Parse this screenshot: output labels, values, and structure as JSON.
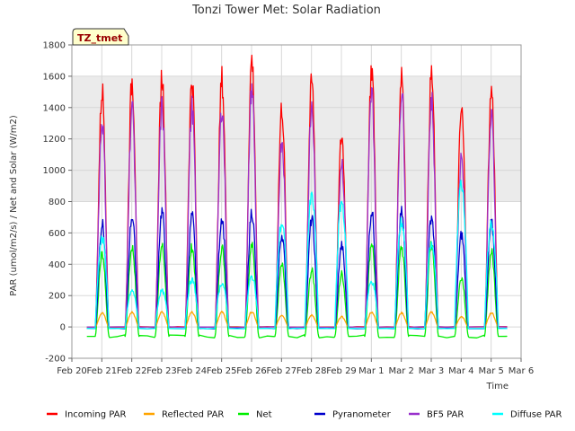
{
  "chart_data": {
    "type": "line",
    "title": "Tonzi Tower Met: Solar Radiation",
    "xlabel": "Time",
    "ylabel": "PAR (umol/m2/s) / Net and Solar (W/m2)",
    "ylim": [
      -200,
      1800
    ],
    "yticks": [
      -200,
      0,
      200,
      400,
      600,
      800,
      1000,
      1200,
      1400,
      1600,
      1800
    ],
    "xlim": [
      0,
      15
    ],
    "xticks": [
      {
        "x": 0,
        "label": "Feb 20"
      },
      {
        "x": 1,
        "label": "Feb 21"
      },
      {
        "x": 2,
        "label": "Feb 22"
      },
      {
        "x": 3,
        "label": "Feb 23"
      },
      {
        "x": 4,
        "label": "Feb 24"
      },
      {
        "x": 5,
        "label": "Feb 25"
      },
      {
        "x": 6,
        "label": "Feb 26"
      },
      {
        "x": 7,
        "label": "Feb 27"
      },
      {
        "x": 8,
        "label": "Feb 28"
      },
      {
        "x": 9,
        "label": "Feb 29"
      },
      {
        "x": 10,
        "label": "Mar 1"
      },
      {
        "x": 11,
        "label": "Mar 2"
      },
      {
        "x": 12,
        "label": "Mar 3"
      },
      {
        "x": 13,
        "label": "Mar 4"
      },
      {
        "x": 14,
        "label": "Mar 5"
      },
      {
        "x": 15,
        "label": "Mar 6"
      }
    ],
    "grid": true,
    "shaded_band": [
      800,
      1600
    ],
    "legend_position": "bottom",
    "badge": "TZ_tmet",
    "days": [
      1,
      2,
      3,
      4,
      5,
      6,
      7,
      8,
      9,
      10,
      11,
      12,
      13,
      14
    ],
    "night_values": {
      "Incoming PAR": 0,
      "Reflected PAR": 0,
      "Net": -60,
      "Pyranometer": -10,
      "BF5 PAR": 0,
      "Diffuse PAR": -10
    },
    "series": [
      {
        "name": "Incoming PAR",
        "color": "#ff0000",
        "daily_peaks": [
          1510,
          1570,
          1600,
          1580,
          1580,
          1710,
          1400,
          1560,
          1220,
          1650,
          1630,
          1610,
          1380,
          1510
        ]
      },
      {
        "name": "Reflected PAR",
        "color": "#ffa500",
        "daily_peaks": [
          90,
          95,
          95,
          95,
          95,
          95,
          75,
          75,
          65,
          95,
          90,
          95,
          65,
          90
        ]
      },
      {
        "name": "Net",
        "color": "#00ee00",
        "daily_peaks": [
          470,
          510,
          520,
          510,
          510,
          520,
          390,
          360,
          340,
          540,
          510,
          530,
          320,
          480
        ]
      },
      {
        "name": "Pyranometer",
        "color": "#0000cc",
        "daily_peaks": [
          660,
          710,
          740,
          710,
          700,
          740,
          590,
          690,
          520,
          740,
          730,
          710,
          590,
          660
        ]
      },
      {
        "name": "BF5 PAR",
        "color": "#9932cc",
        "daily_peaks": [
          1320,
          1400,
          1410,
          1400,
          1400,
          1530,
          1200,
          1400,
          1060,
          1490,
          1510,
          1450,
          1100,
          1340
        ]
      },
      {
        "name": "Diffuse PAR",
        "color": "#00ffff",
        "daily_peaks": [
          560,
          230,
          230,
          300,
          280,
          320,
          660,
          830,
          800,
          290,
          670,
          520,
          920,
          660
        ]
      }
    ]
  }
}
